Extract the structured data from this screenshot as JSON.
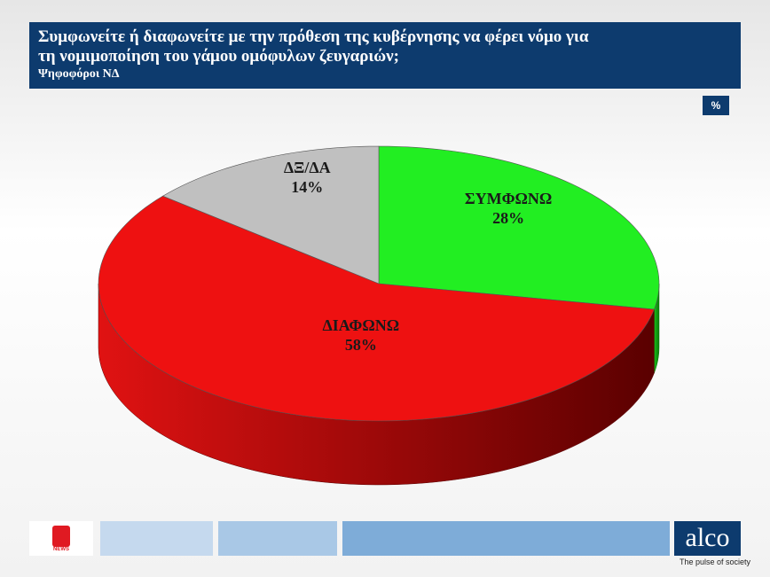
{
  "chart_data": {
    "type": "pie",
    "title": "Συμφωνείτε ή διαφωνείτε με την πρόθεση της κυβέρνησης να φέρει νόμο για τη νομιμοποίηση του γάμου ομόφυλων ζευγαριών;",
    "subtitle": "Ψηφοφόροι ΝΔ",
    "unit_label": "%",
    "categories": [
      "ΣΥΜΦΩΝΩ",
      "ΔΙΑΦΩΝΩ",
      "ΔΞ/ΔΑ"
    ],
    "values": [
      28,
      58,
      14
    ],
    "value_labels": [
      "28%",
      "58%",
      "14%"
    ],
    "colors": [
      "#22ee22",
      "#ee1111",
      "#c0c0c0"
    ],
    "side_colors": [
      [
        "#19c019",
        "#0a7a0a"
      ],
      [
        "#e01212",
        "#5a0000"
      ],
      [
        "#a0a0a0",
        "#707070"
      ]
    ]
  },
  "footer": {
    "logo_text": "NEWS",
    "brand": "alco",
    "tagline": "The pulse of society"
  }
}
